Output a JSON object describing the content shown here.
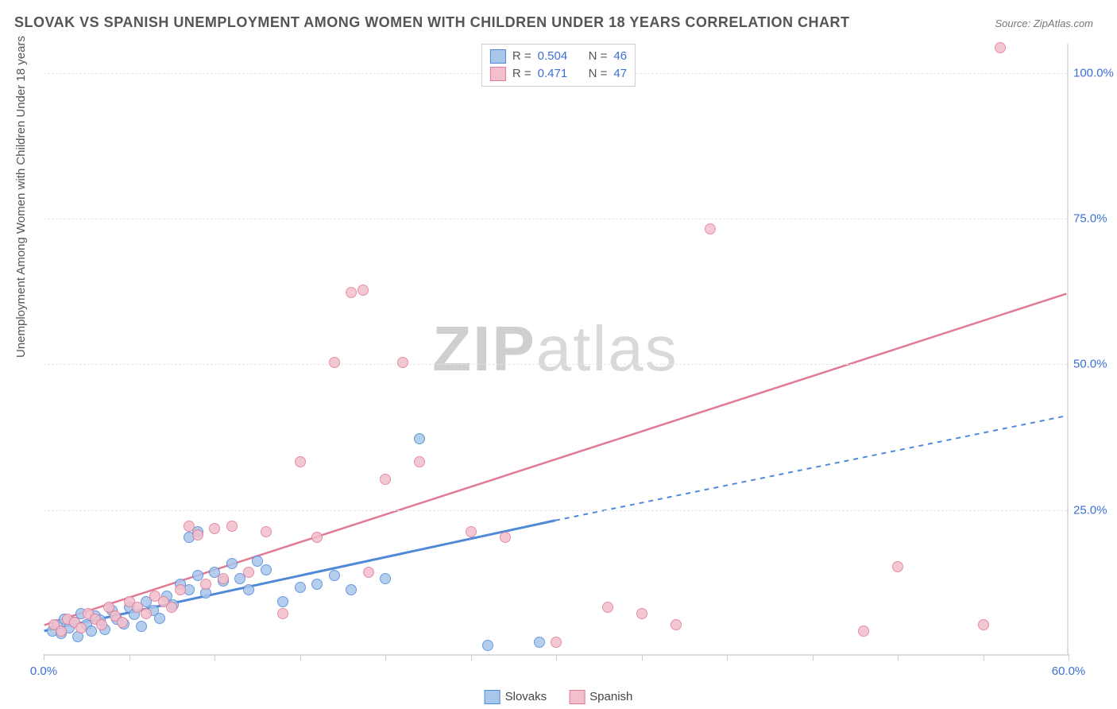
{
  "title": "SLOVAK VS SPANISH UNEMPLOYMENT AMONG WOMEN WITH CHILDREN UNDER 18 YEARS CORRELATION CHART",
  "source": "Source: ZipAtlas.com",
  "ylabel": "Unemployment Among Women with Children Under 18 years",
  "watermark_a": "ZIP",
  "watermark_b": "atlas",
  "chart": {
    "type": "scatter",
    "xlim": [
      0,
      60
    ],
    "ylim": [
      0,
      105
    ],
    "xticks": [
      0,
      5,
      10,
      15,
      20,
      25,
      30,
      35,
      40,
      45,
      50,
      55,
      60
    ],
    "xtick_labels": {
      "0": "0.0%",
      "60": "60.0%"
    },
    "yticks": [
      25,
      50,
      75,
      100
    ],
    "ytick_labels": [
      "25.0%",
      "50.0%",
      "75.0%",
      "100.0%"
    ],
    "background_color": "#ffffff",
    "grid_color": "#e5e5e5",
    "axis_color": "#dddddd",
    "tick_label_color": "#3b6fd6",
    "marker_radius": 7,
    "marker_border": 1.5,
    "marker_fill_opacity": 0.35,
    "series": [
      {
        "name": "Slovaks",
        "color": "#4f89d8",
        "fill": "#a9c6eb",
        "R": "0.504",
        "N": "46",
        "trend": {
          "x1": 0,
          "y1": 4,
          "x2": 30,
          "y2": 23,
          "extend_x": 60,
          "extend_y": 41,
          "dash_after": 30
        },
        "points": [
          [
            0.5,
            4
          ],
          [
            0.8,
            5
          ],
          [
            1,
            3.5
          ],
          [
            1.2,
            6
          ],
          [
            1.5,
            4.5
          ],
          [
            1.8,
            5.5
          ],
          [
            2,
            3
          ],
          [
            2.2,
            7
          ],
          [
            2.5,
            5
          ],
          [
            2.8,
            4
          ],
          [
            3,
            6.5
          ],
          [
            3.3,
            5.8
          ],
          [
            3.6,
            4.2
          ],
          [
            4,
            7.5
          ],
          [
            4.3,
            6
          ],
          [
            4.7,
            5.2
          ],
          [
            5,
            8
          ],
          [
            5.3,
            6.8
          ],
          [
            5.7,
            4.8
          ],
          [
            6,
            9
          ],
          [
            6.4,
            7.5
          ],
          [
            6.8,
            6.2
          ],
          [
            7.2,
            10
          ],
          [
            7.6,
            8.5
          ],
          [
            8,
            12
          ],
          [
            8.5,
            11
          ],
          [
            9,
            13.5
          ],
          [
            9.5,
            10.5
          ],
          [
            10,
            14
          ],
          [
            10.5,
            12.5
          ],
          [
            11,
            15.5
          ],
          [
            11.5,
            13
          ],
          [
            12,
            11
          ],
          [
            12.5,
            16
          ],
          [
            13,
            14.5
          ],
          [
            14,
            9
          ],
          [
            15,
            11.5
          ],
          [
            16,
            12
          ],
          [
            17,
            13.5
          ],
          [
            18,
            11
          ],
          [
            20,
            13
          ],
          [
            22,
            37
          ],
          [
            26,
            1.5
          ],
          [
            29,
            2
          ],
          [
            8.5,
            20
          ],
          [
            9,
            21
          ]
        ]
      },
      {
        "name": "Spanish",
        "color": "#e17a94",
        "fill": "#f3bfcc",
        "R": "0.471",
        "N": "47",
        "trend": {
          "x1": 0,
          "y1": 5,
          "x2": 60,
          "y2": 62
        },
        "points": [
          [
            0.6,
            5
          ],
          [
            1,
            4
          ],
          [
            1.4,
            6
          ],
          [
            1.8,
            5.5
          ],
          [
            2.2,
            4.5
          ],
          [
            2.6,
            7
          ],
          [
            3,
            6
          ],
          [
            3.4,
            5
          ],
          [
            3.8,
            8
          ],
          [
            4.2,
            6.5
          ],
          [
            4.6,
            5.5
          ],
          [
            5,
            9
          ],
          [
            5.5,
            8
          ],
          [
            6,
            7
          ],
          [
            6.5,
            10
          ],
          [
            7,
            9
          ],
          [
            7.5,
            8
          ],
          [
            8,
            11
          ],
          [
            8.5,
            22
          ],
          [
            9,
            20.5
          ],
          [
            9.5,
            12
          ],
          [
            10,
            21.5
          ],
          [
            10.5,
            13
          ],
          [
            11,
            22
          ],
          [
            12,
            14
          ],
          [
            13,
            21
          ],
          [
            14,
            7
          ],
          [
            15,
            33
          ],
          [
            16,
            20
          ],
          [
            17,
            50
          ],
          [
            18,
            62
          ],
          [
            18.7,
            62.5
          ],
          [
            19,
            14
          ],
          [
            20,
            30
          ],
          [
            21,
            50
          ],
          [
            22,
            33
          ],
          [
            25,
            21
          ],
          [
            27,
            20
          ],
          [
            30,
            2
          ],
          [
            33,
            8
          ],
          [
            35,
            7
          ],
          [
            37,
            5
          ],
          [
            39,
            73
          ],
          [
            48,
            4
          ],
          [
            50,
            15
          ],
          [
            55,
            5
          ],
          [
            56,
            104
          ]
        ]
      }
    ]
  },
  "legend_top": {
    "R_label": "R =",
    "N_label": "N ="
  }
}
